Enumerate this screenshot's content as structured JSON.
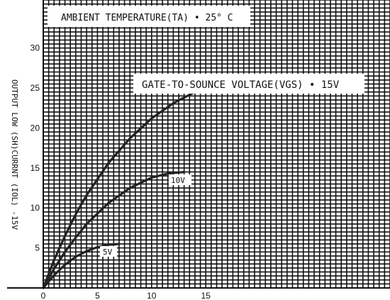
{
  "chart_data": {
    "type": "line",
    "title": "AMBIENT TEMPERATURE(TA) • 25° C",
    "ylabel": "OUTPUT LOW (SH)CURRNT (IOL) -15V",
    "xlabel": "",
    "xlim": [
      0,
      32
    ],
    "ylim": [
      0,
      36
    ],
    "x_ticks": [
      0,
      5,
      10,
      15
    ],
    "y_ticks": [
      5,
      10,
      15,
      20,
      25,
      30
    ],
    "grid": true,
    "series": [
      {
        "name": "GATE-TO-SOUNCE VOLTAGE(VGS) • 15V",
        "x": [
          0,
          1,
          2,
          3,
          4,
          6,
          8,
          10,
          12,
          14,
          16,
          17.5,
          19
        ],
        "y": [
          0,
          3.5,
          6.5,
          9.2,
          11.6,
          15.6,
          18.7,
          21.2,
          23.1,
          24.5,
          25.4,
          25.9,
          26
        ]
      },
      {
        "name": "10V",
        "x": [
          0,
          1,
          2,
          3,
          4,
          6,
          8,
          10,
          11.5,
          13
        ],
        "y": [
          0,
          2.4,
          4.5,
          6.3,
          8.0,
          10.6,
          12.5,
          13.8,
          14.3,
          14.5
        ]
      },
      {
        "name": "5V",
        "x": [
          0,
          1,
          2,
          3,
          4,
          5,
          6,
          7
        ],
        "y": [
          0,
          1.6,
          2.9,
          3.9,
          4.6,
          5.1,
          5.4,
          5.5
        ]
      }
    ]
  }
}
